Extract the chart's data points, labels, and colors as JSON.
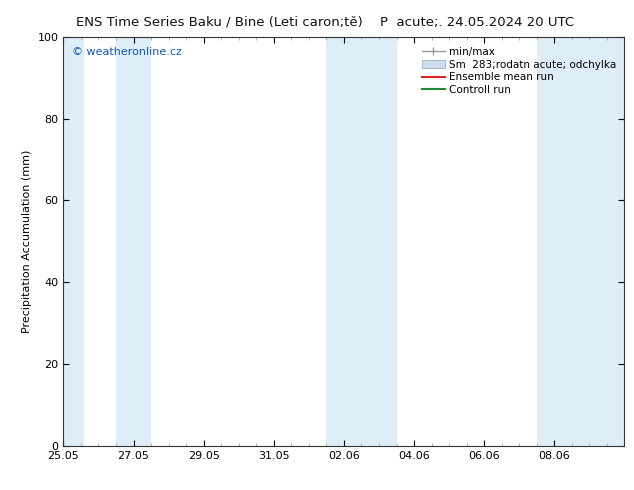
{
  "title_left": "ENS Time Series Baku / Bine (Leti caron;tě)",
  "title_right": "P  acute;. 24.05.2024 20 UTC",
  "ylabel": "Precipitation Accumulation (mm)",
  "ylim": [
    0,
    100
  ],
  "yticks": [
    0,
    20,
    40,
    60,
    80,
    100
  ],
  "x_labels": [
    "25.05",
    "27.05",
    "29.05",
    "31.05",
    "02.06",
    "04.06",
    "06.06",
    "08.06"
  ],
  "x_tick_positions": [
    0,
    2,
    4,
    6,
    8,
    10,
    12,
    14
  ],
  "xlim": [
    0,
    16
  ],
  "bg_color": "#ffffff",
  "plot_bg_color": "#ffffff",
  "band_color_light": "#ddeef8",
  "band_positions": [
    0.0,
    1.5,
    7.5,
    9.0,
    13.5,
    16.0
  ],
  "watermark": "© weatheronline.cz",
  "watermark_color": "#1155bb",
  "legend_label_minmax": "min/max",
  "legend_label_std": "Sm  283;rodatn acute; odchylka",
  "legend_label_mean": "Ensemble mean run",
  "legend_label_ctrl": "Controll run",
  "color_minmax": "#999999",
  "color_std": "#ccddee",
  "color_mean": "#dd2222",
  "color_ctrl": "#228833",
  "font_size_title": 9.5,
  "font_size_axis": 8,
  "font_size_watermark": 8,
  "font_size_legend": 7.5
}
